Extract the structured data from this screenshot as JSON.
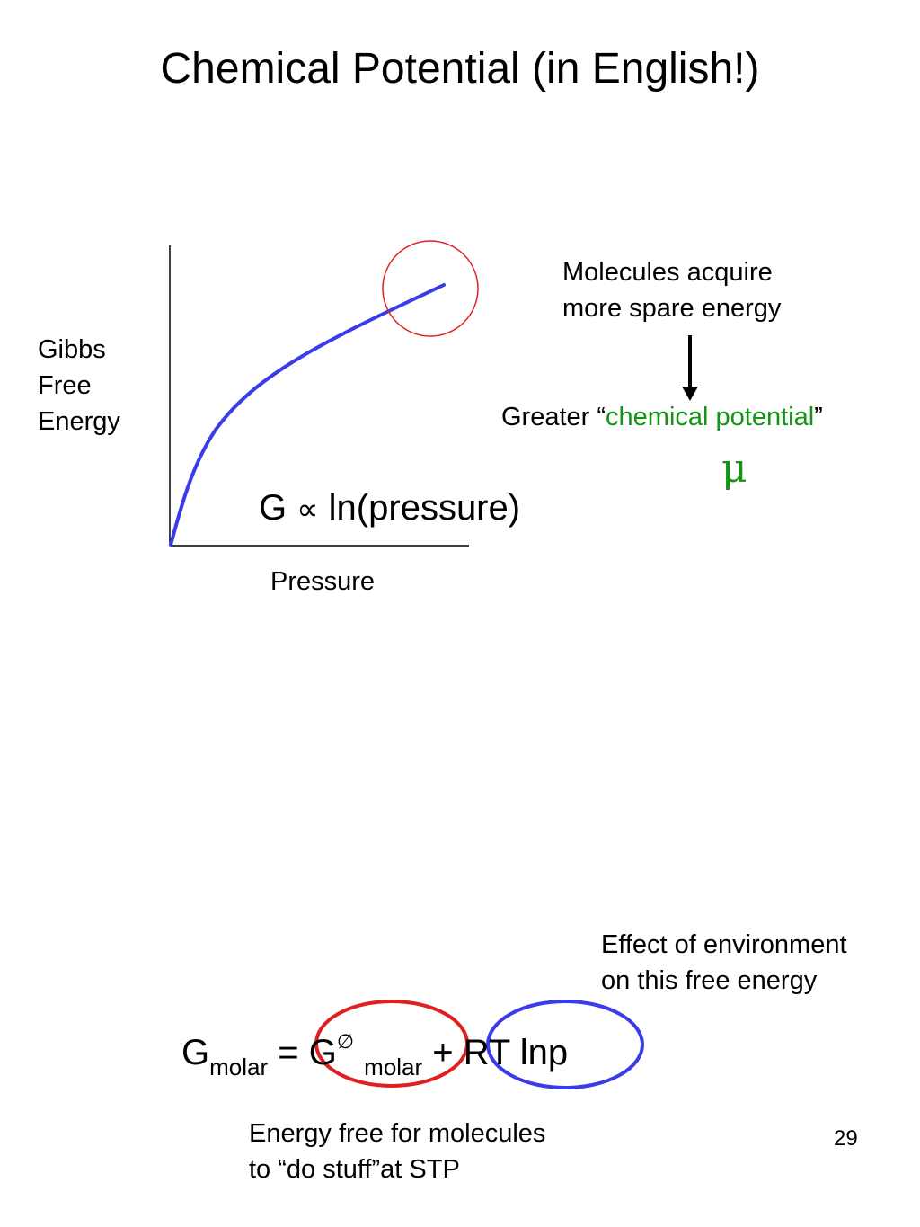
{
  "slide": {
    "title": "Chemical Potential (in English!)",
    "page_number": "29"
  },
  "graph": {
    "y_label_lines": [
      "Gibbs",
      "Free",
      "Energy"
    ],
    "x_label": "Pressure",
    "relation": {
      "lhs": "G",
      "symbol": "∝",
      "rhs": "ln(pressure)"
    },
    "curve_color": "#3b3bea",
    "highlight_color": "#e02020"
  },
  "annotation": {
    "molecules_lines": [
      "Molecules acquire",
      "more spare energy"
    ],
    "greater_prefix": "Greater “",
    "greater_term": "chemical potential",
    "greater_suffix": "”",
    "mu_symbol": "μ",
    "term_color": "#139413"
  },
  "equation": {
    "g": "G",
    "g_sub": "molar",
    "equals": " = ",
    "g0": "G",
    "g0_sup": "∅",
    "g0_sub": "molar",
    "plus": " + ",
    "rt": "RT lnp",
    "red_oval_color": "#e02020",
    "blue_oval_color": "#3b3bea"
  },
  "notes": {
    "environment_lines": [
      "Effect of environment",
      "on this free energy"
    ],
    "energy_free_lines": [
      "Energy free for molecules",
      "to “do stuff”at STP"
    ]
  }
}
